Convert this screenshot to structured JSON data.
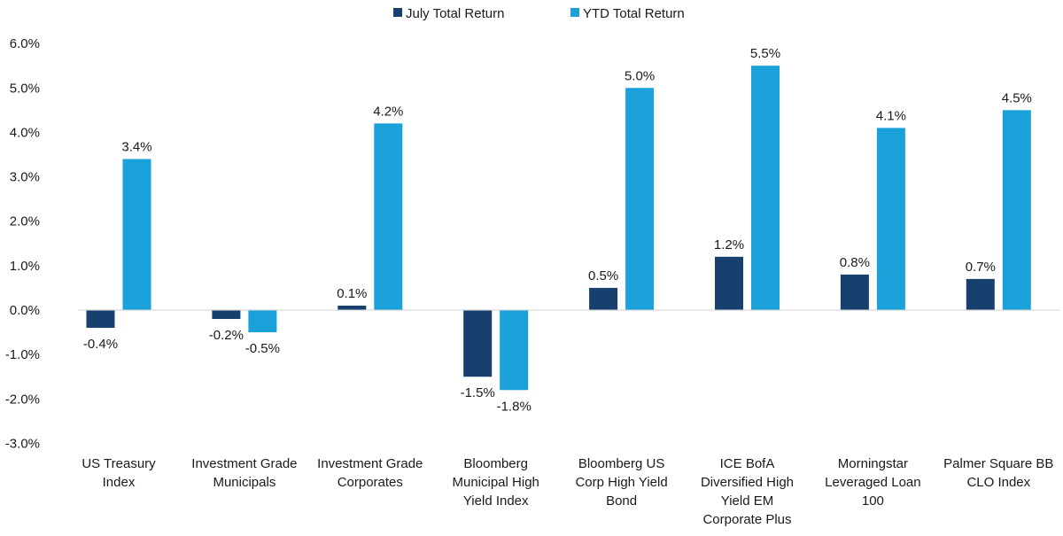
{
  "chart_data": {
    "type": "bar",
    "title": "",
    "xlabel": "",
    "ylabel": "",
    "ylim": [
      -3.0,
      6.0
    ],
    "yticks": [
      6.0,
      5.0,
      4.0,
      3.0,
      2.0,
      1.0,
      0.0,
      -1.0,
      -2.0,
      -3.0
    ],
    "ytick_labels": [
      "6.0%",
      "5.0%",
      "4.0%",
      "3.0%",
      "2.0%",
      "1.0%",
      "0.0%",
      "-1.0%",
      "-2.0%",
      "-3.0%"
    ],
    "grid": false,
    "legend_position": "top-center",
    "categories": [
      [
        "US Treasury",
        "Index"
      ],
      [
        "Investment Grade",
        "Municipals"
      ],
      [
        "Investment Grade",
        "Corporates"
      ],
      [
        "Bloomberg",
        "Municipal  High",
        "Yield Index"
      ],
      [
        "Bloomberg US",
        "Corp High Yield",
        "Bond"
      ],
      [
        "ICE BofA",
        "Diversified High",
        "Yield EM",
        "Corporate Plus"
      ],
      [
        "Morningstar",
        "Leveraged Loan",
        "100"
      ],
      [
        "Palmer Square BB",
        "CLO Index"
      ]
    ],
    "series": [
      {
        "name": "July Total Return",
        "color": "#17406f",
        "values": [
          -0.4,
          -0.2,
          0.1,
          -1.5,
          0.5,
          1.2,
          0.8,
          0.7
        ],
        "labels": [
          "-0.4%",
          "-0.2%",
          "0.1%",
          "-1.5%",
          "0.5%",
          "1.2%",
          "0.8%",
          "0.7%"
        ]
      },
      {
        "name": "YTD Total Return",
        "color": "#1aa1da",
        "values": [
          3.4,
          -0.5,
          4.2,
          -1.8,
          5.0,
          5.5,
          4.1,
          4.5
        ],
        "labels": [
          "3.4%",
          "-0.5%",
          "4.2%",
          "-1.8%",
          "5.0%",
          "5.5%",
          "4.1%",
          "4.5%"
        ]
      }
    ]
  }
}
